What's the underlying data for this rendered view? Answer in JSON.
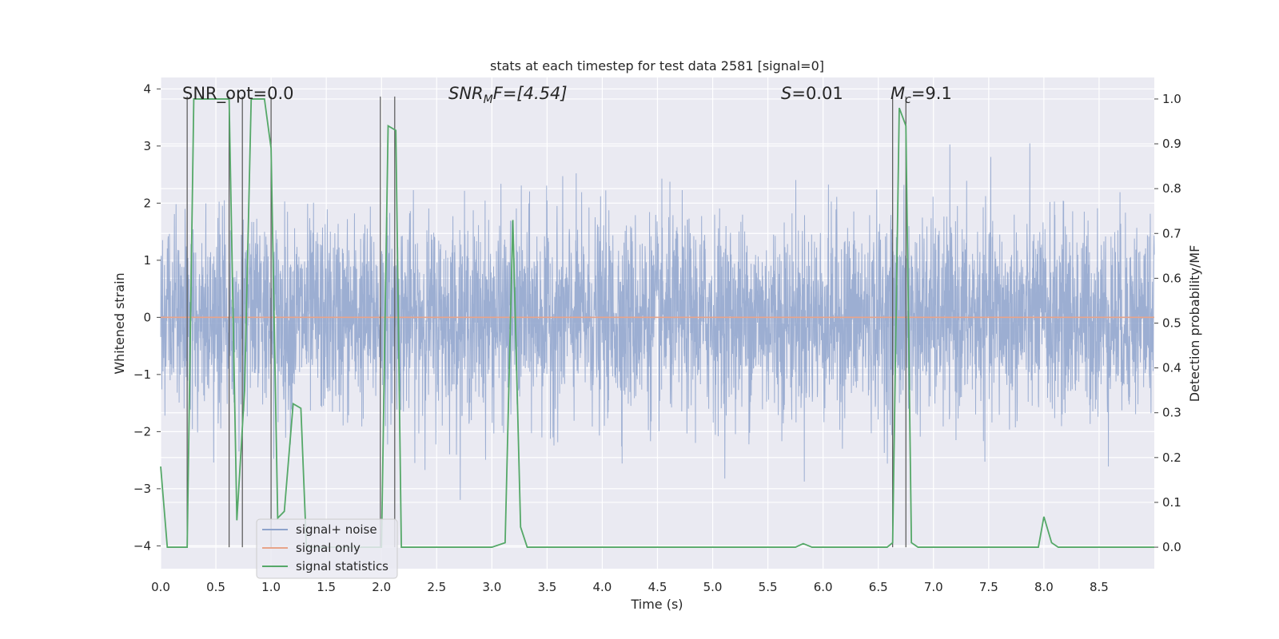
{
  "chart_data": {
    "type": "line",
    "title": "stats at each timestep for test data 2581 [signal=0]",
    "xlabel": "Time (s)",
    "ylabel": "Whitened strain",
    "y2label": "Detection probability/MF",
    "xlim": [
      0,
      9.0
    ],
    "ylim": [
      -4.4,
      4.2
    ],
    "y2lim": [
      -0.048,
      1.048
    ],
    "x_ticks": [
      "0.0",
      "0.5",
      "1.0",
      "1.5",
      "2.0",
      "2.5",
      "3.0",
      "3.5",
      "4.0",
      "4.5",
      "5.0",
      "5.5",
      "6.0",
      "6.5",
      "7.0",
      "7.5",
      "8.0",
      "8.5"
    ],
    "y_ticks": [
      "−4",
      "−3",
      "−2",
      "−1",
      "0",
      "1",
      "2",
      "3",
      "4"
    ],
    "y2_ticks": [
      "0.0",
      "0.1",
      "0.2",
      "0.3",
      "0.4",
      "0.5",
      "0.6",
      "0.7",
      "0.8",
      "0.9",
      "1.0"
    ],
    "grid": true,
    "legend_position": "lower-left",
    "annotations": {
      "snr_opt": "SNR_opt=0.0",
      "snr_mf_main": "SNR",
      "snr_mf_sub": "M",
      "snr_mf_rest": "F=[4.54]",
      "s_main": "S",
      "s_rest": "=0.01",
      "mc_main": "M",
      "mc_sub": "c",
      "mc_rest": "=9.1"
    },
    "series": [
      {
        "name": "signal+ noise",
        "color": "#8ea3cc",
        "noise_std": 0.85,
        "note_visual": "dense whitened strain noise, amplitude roughly ±2.5, peaks near ±3.5"
      },
      {
        "name": "signal only",
        "color": "#e8a48a",
        "constant": 0.0
      },
      {
        "name": "signal statistics",
        "color": "#55a868",
        "axis": "right",
        "x": [
          0.0,
          0.06,
          0.15,
          0.24,
          0.3,
          0.35,
          0.44,
          0.55,
          0.62,
          0.69,
          0.76,
          0.82,
          0.88,
          0.94,
          1.0,
          1.06,
          1.12,
          1.2,
          1.27,
          1.32,
          1.4,
          1.5,
          1.6,
          1.7,
          1.8,
          1.9,
          2.0,
          2.06,
          2.13,
          2.18,
          2.25,
          2.4,
          2.6,
          2.8,
          3.0,
          3.12,
          3.19,
          3.26,
          3.32,
          3.4,
          3.6,
          3.8,
          4.0,
          4.4,
          4.8,
          5.2,
          5.6,
          5.75,
          5.82,
          5.9,
          6.0,
          6.2,
          6.4,
          6.58,
          6.63,
          6.69,
          6.75,
          6.8,
          6.86,
          7.0,
          7.4,
          7.8,
          7.95,
          8.0,
          8.07,
          8.13,
          8.2,
          8.6,
          9.0
        ],
        "values": [
          0.18,
          0.0,
          0.0,
          0.0,
          1.0,
          1.0,
          1.0,
          1.0,
          1.0,
          0.06,
          0.35,
          1.0,
          1.0,
          1.0,
          0.89,
          0.065,
          0.08,
          0.32,
          0.31,
          0.0,
          0.0,
          0.0,
          0.0,
          0.0,
          0.0,
          0.0,
          0.0,
          0.94,
          0.93,
          0.0,
          0.0,
          0.0,
          0.0,
          0.0,
          0.0,
          0.01,
          0.73,
          0.045,
          0.0,
          0.0,
          0.0,
          0.0,
          0.0,
          0.0,
          0.0,
          0.0,
          0.0,
          0.0,
          0.008,
          0.0,
          0.0,
          0.0,
          0.0,
          0.0,
          0.01,
          0.98,
          0.94,
          0.01,
          0.0,
          0.0,
          0.0,
          0.0,
          0.0,
          0.068,
          0.01,
          0.0,
          0.0,
          0.0,
          0.0
        ]
      }
    ],
    "vlines_x": [
      0.24,
      0.62,
      0.74,
      1.0,
      1.99,
      2.12,
      6.63,
      6.75
    ]
  }
}
